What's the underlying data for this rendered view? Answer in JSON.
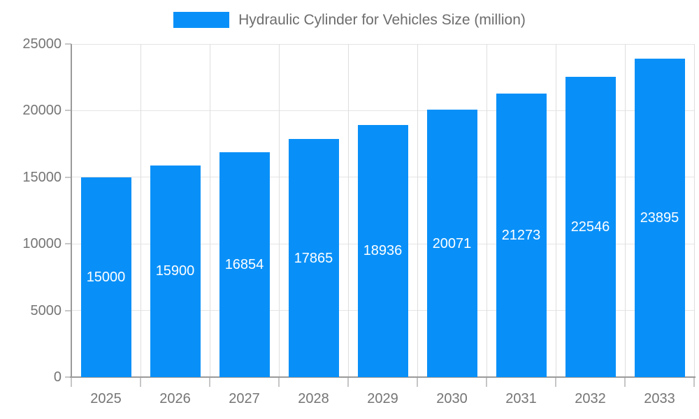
{
  "legend": {
    "label": "Hydraulic Cylinder for Vehicles Size (million)"
  },
  "colors": {
    "bar": "#0990f8",
    "grid_h": "#e4e4e4",
    "grid_v": "#dedede",
    "axis": "#9a9a9a",
    "tick": "#c6c6c6",
    "axis_text": "#757575",
    "title_text": "#6d6d6d",
    "bar_label": "#ffffff",
    "background": "#ffffff"
  },
  "chart_data": {
    "type": "bar",
    "title": "Hydraulic Cylinder for Vehicles Size (million)",
    "categories": [
      "2025",
      "2026",
      "2027",
      "2028",
      "2029",
      "2030",
      "2031",
      "2032",
      "2033"
    ],
    "values": [
      15000,
      15900,
      16854,
      17865,
      18936,
      20071,
      21273,
      22546,
      23895
    ],
    "series_name": "Hydraulic Cylinder for Vehicles Size (million)",
    "xlabel": "",
    "ylabel": "",
    "ylim": [
      0,
      25000
    ],
    "yticks": [
      0,
      5000,
      10000,
      15000,
      20000,
      25000
    ],
    "grid": "horizontal and vertical gridlines",
    "legend_position": "top-center",
    "bar_label_position": "inside-center"
  }
}
